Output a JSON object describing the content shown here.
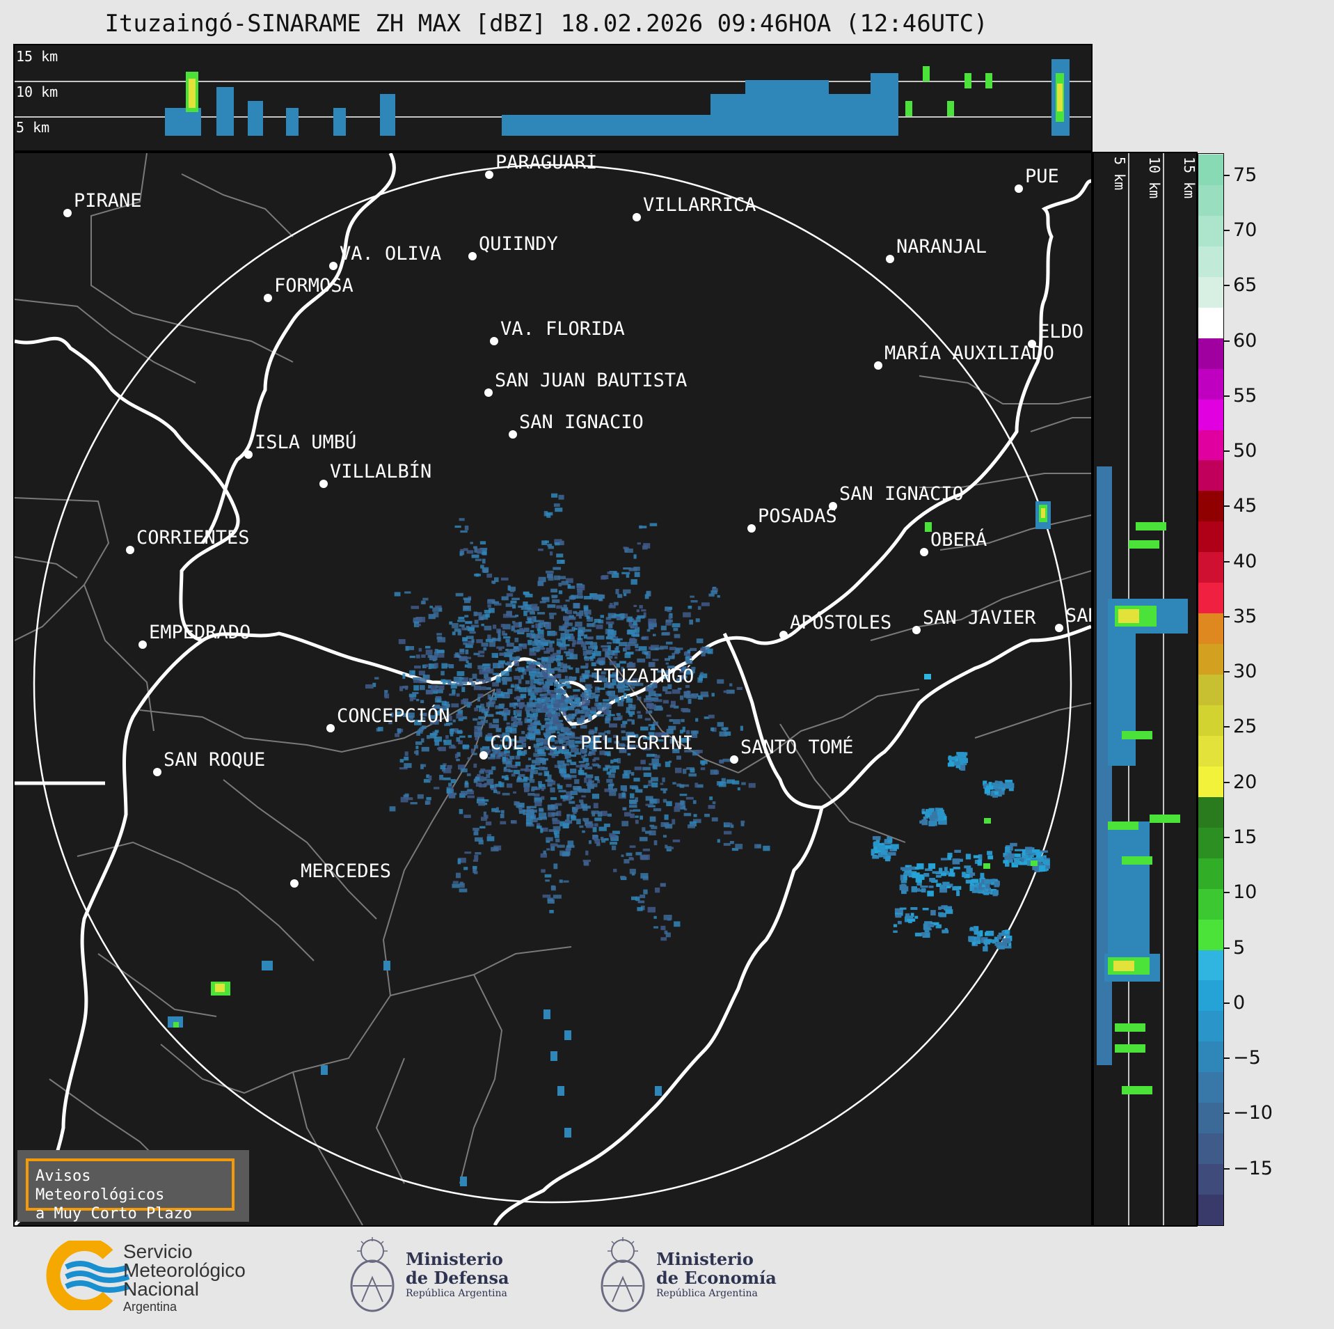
{
  "title": "Ituzaingó-SINARAME ZH MAX [dBZ] 18.02.2026 09:46HOA (12:46UTC)",
  "height_labels_top": [
    "15 km",
    "10 km",
    "5 km"
  ],
  "height_labels_side": [
    "5 km",
    "10 km",
    "15 km"
  ],
  "radar_site": "ITUZAINGÓ",
  "places": [
    {
      "name": "PARAGUARÍ"
    },
    {
      "name": "VILLARRICA"
    },
    {
      "name": "PIRANE"
    },
    {
      "name": "QUIINDY"
    },
    {
      "name": "VA. OLIVA"
    },
    {
      "name": "NARANJAL"
    },
    {
      "name": "FORMOSA"
    },
    {
      "name": "VA. FLORIDA"
    },
    {
      "name": "ELDO"
    },
    {
      "name": "MARÍA AUXILIADO"
    },
    {
      "name": "SAN JUAN BAUTISTA"
    },
    {
      "name": "SAN IGNACIO"
    },
    {
      "name": "ISLA UMBÚ"
    },
    {
      "name": "VILLALBÍN"
    },
    {
      "name": "SAN IGNACIO"
    },
    {
      "name": "POSADAS"
    },
    {
      "name": "CORRIENTES"
    },
    {
      "name": "OBERÁ"
    },
    {
      "name": "APÓSTOLES"
    },
    {
      "name": "SAN JAVIER"
    },
    {
      "name": "SAN"
    },
    {
      "name": "EMPEDRADO"
    },
    {
      "name": "CONCEPCIÓN"
    },
    {
      "name": "COL. C. PELLEGRINI"
    },
    {
      "name": "SANTO TOMÉ"
    },
    {
      "name": "SAN ROQUE"
    },
    {
      "name": "MERCEDES"
    },
    {
      "name": "PUE"
    }
  ],
  "colorbar": {
    "ticks": [
      "75",
      "70",
      "65",
      "60",
      "55",
      "50",
      "45",
      "40",
      "35",
      "30",
      "25",
      "20",
      "15",
      "10",
      "5",
      "0",
      "−5",
      "−10",
      "−15"
    ],
    "range": [
      -20,
      77
    ],
    "colors": [
      "#3a3a6a",
      "#3f4b7a",
      "#3f5b8a",
      "#3b6a98",
      "#3778a8",
      "#2f86b8",
      "#2a95c8",
      "#25a3d6",
      "#2fb5e0",
      "#4be23a",
      "#3cc830",
      "#32ad28",
      "#2b8f22",
      "#2a7a1e",
      "#f2f23a",
      "#e2e23a",
      "#d2d230",
      "#c8c030",
      "#d4a020",
      "#e08820",
      "#ef2040",
      "#d01030",
      "#b00018",
      "#900000",
      "#c0005a",
      "#e000a0",
      "#e000e0",
      "#c000c0",
      "#a000a0",
      "#ffffff",
      "#d8f0e4",
      "#c2ead8",
      "#ade4cc",
      "#98debf",
      "#88dab5"
    ]
  },
  "warning_box": {
    "line1": "Avisos Meteorológicos",
    "line2": "a Muy Corto Plazo"
  },
  "logos": {
    "smn": {
      "line1": "Servicio",
      "line2": "Meteorológico",
      "line3": "Nacional",
      "line4": "Argentina"
    },
    "defensa": {
      "line1": "Ministerio",
      "line2": "de Defensa",
      "line3": "República Argentina"
    },
    "economia": {
      "line1": "Ministerio",
      "line2": "de Economía",
      "line3": "República Argentina"
    }
  }
}
